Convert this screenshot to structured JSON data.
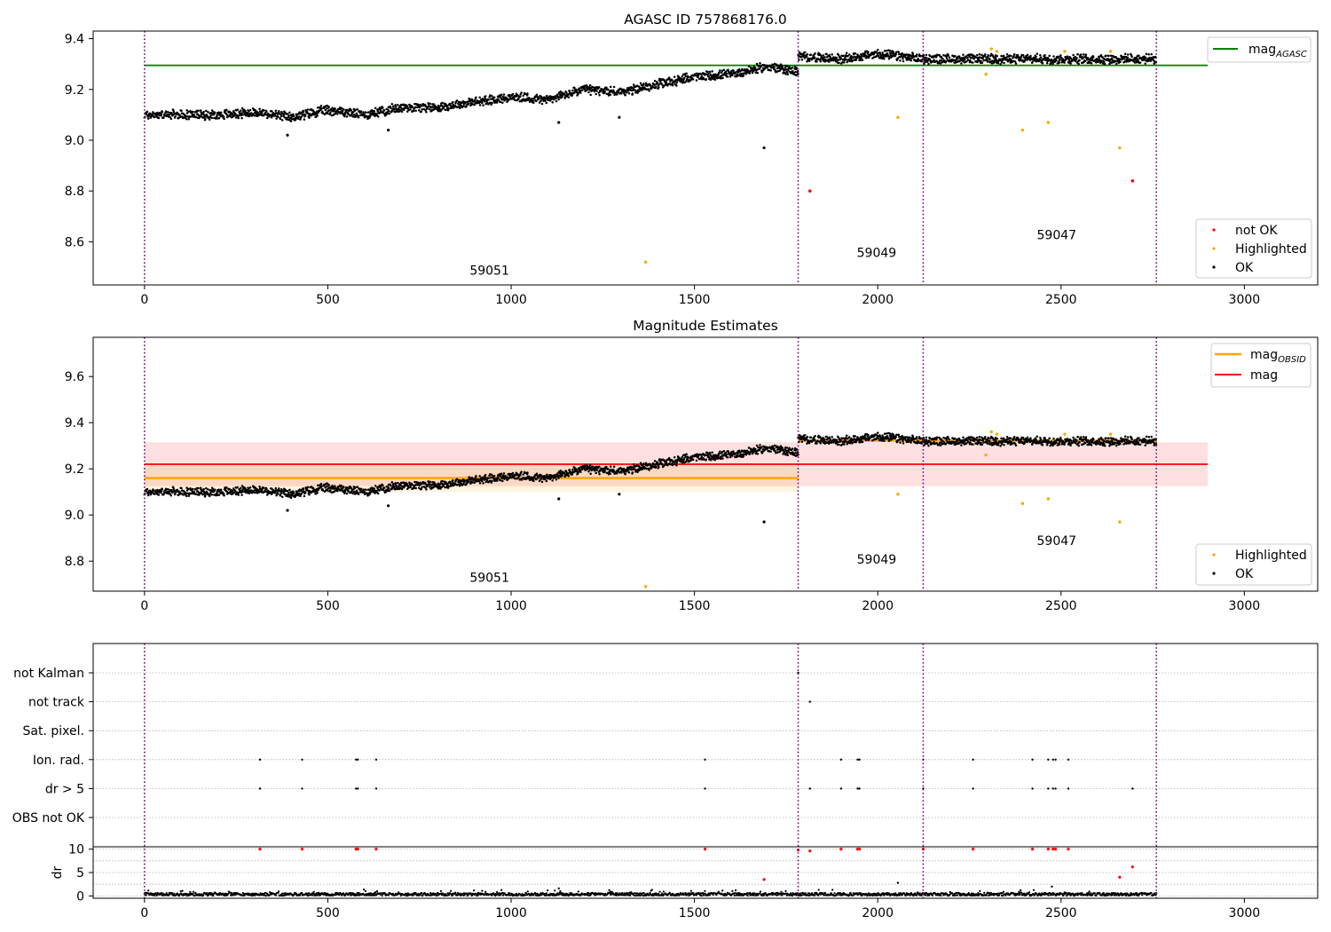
{
  "chart_data": [
    {
      "type": "scatter",
      "title": "AGASC ID 757868176.0",
      "xlim": [
        -140,
        3200
      ],
      "ylim": [
        8.43,
        9.43
      ],
      "xticks": [
        0,
        500,
        1000,
        1500,
        2000,
        2500,
        3000
      ],
      "yticks": [
        8.6,
        8.8,
        9.0,
        9.2,
        9.4
      ],
      "ytick_labels": [
        "8.6",
        "8.8",
        "9.0",
        "9.2",
        "9.4"
      ],
      "grid": false,
      "legend_position": "lower-right",
      "legend": [
        {
          "label": "not OK",
          "color": "#ff0000"
        },
        {
          "label": "Highlighted",
          "color": "#ffa500"
        },
        {
          "label": "OK",
          "color": "#000000"
        }
      ],
      "hline_legend": {
        "label": "mag",
        "subscript": "AGASC",
        "color": "#008000"
      },
      "hlines": [
        {
          "y": 9.295,
          "x0": 0,
          "x1": 2900,
          "color": "#008000"
        }
      ],
      "vlines": [
        0,
        1783,
        2124,
        2760
      ],
      "annotations": [
        {
          "text": "59051",
          "x": 887,
          "y": 8.47
        },
        {
          "text": "59049",
          "x": 1943,
          "y": 8.54
        },
        {
          "text": "59047",
          "x": 2434,
          "y": 8.61
        }
      ],
      "segments": [
        {
          "x0": 0,
          "x1": 1783,
          "trend": [
            [
              0,
              9.1
            ],
            [
              100,
              9.1
            ],
            [
              200,
              9.1
            ],
            [
              300,
              9.11
            ],
            [
              400,
              9.09
            ],
            [
              500,
              9.12
            ],
            [
              600,
              9.1
            ],
            [
              700,
              9.13
            ],
            [
              800,
              9.13
            ],
            [
              900,
              9.15
            ],
            [
              1000,
              9.17
            ],
            [
              1100,
              9.16
            ],
            [
              1200,
              9.2
            ],
            [
              1300,
              9.19
            ],
            [
              1400,
              9.22
            ],
            [
              1500,
              9.25
            ],
            [
              1600,
              9.26
            ],
            [
              1700,
              9.29
            ],
            [
              1783,
              9.27
            ]
          ]
        },
        {
          "x0": 1783,
          "x1": 2124,
          "trend": [
            [
              1783,
              9.33
            ],
            [
              1900,
              9.32
            ],
            [
              2000,
              9.34
            ],
            [
              2124,
              9.32
            ]
          ]
        },
        {
          "x0": 2124,
          "x1": 2760,
          "trend": [
            [
              2124,
              9.32
            ],
            [
              2300,
              9.32
            ],
            [
              2500,
              9.32
            ],
            [
              2760,
              9.32
            ]
          ]
        }
      ],
      "ok_outliers": [
        [
          390,
          9.02
        ],
        [
          665,
          9.04
        ],
        [
          1130,
          9.07
        ],
        [
          1295,
          9.09
        ],
        [
          1690,
          8.97
        ]
      ],
      "highlighted": [
        [
          1367,
          8.52
        ],
        [
          2055,
          9.09
        ],
        [
          2295,
          9.26
        ],
        [
          2395,
          9.04
        ],
        [
          2465,
          9.07
        ],
        [
          2660,
          8.97
        ],
        [
          2310,
          9.36
        ],
        [
          2325,
          9.35
        ],
        [
          2510,
          9.35
        ],
        [
          2635,
          9.35
        ]
      ],
      "not_ok": [
        [
          1815,
          8.8
        ],
        [
          2695,
          8.84
        ]
      ]
    },
    {
      "type": "scatter",
      "title": "Magnitude Estimates",
      "xlim": [
        -140,
        3200
      ],
      "ylim": [
        8.67,
        9.77
      ],
      "xticks": [
        0,
        500,
        1000,
        1500,
        2000,
        2500,
        3000
      ],
      "yticks": [
        8.8,
        9.0,
        9.2,
        9.4,
        9.6
      ],
      "ytick_labels": [
        "8.8",
        "9.0",
        "9.2",
        "9.4",
        "9.6"
      ],
      "grid": false,
      "legend_position": "lower-right",
      "legend": [
        {
          "label": "Highlighted",
          "color": "#ffa500"
        },
        {
          "label": "OK",
          "color": "#000000"
        }
      ],
      "line_legend": [
        {
          "label": "mag",
          "subscript": "OBSID",
          "color": "#ffa500"
        },
        {
          "label": "mag",
          "subscript": "",
          "color": "#ff0000"
        }
      ],
      "bands": [
        {
          "x0": 0,
          "x1": 2900,
          "y0": 9.125,
          "y1": 9.315,
          "color": "#ff0000",
          "opacity": 0.12
        },
        {
          "x0": 0,
          "x1": 1783,
          "y0": 9.1,
          "y1": 9.22,
          "color": "#ffa500",
          "opacity": 0.12
        }
      ],
      "hlines": [
        {
          "y": 9.22,
          "x0": 0,
          "x1": 2900,
          "color": "#ff0000"
        },
        {
          "y": 9.16,
          "x0": 0,
          "x1": 1783,
          "color": "#ffa500"
        },
        {
          "y": 9.322,
          "x0": 1783,
          "x1": 2760,
          "color": "#ffa500"
        }
      ],
      "vlines": [
        0,
        1783,
        2124,
        2760
      ],
      "annotations": [
        {
          "text": "59051",
          "x": 887,
          "y": 8.71
        },
        {
          "text": "59049",
          "x": 1943,
          "y": 8.79
        },
        {
          "text": "59047",
          "x": 2434,
          "y": 8.87
        }
      ],
      "segments": [
        {
          "x0": 0,
          "x1": 1783,
          "trend": [
            [
              0,
              9.1
            ],
            [
              100,
              9.1
            ],
            [
              200,
              9.1
            ],
            [
              300,
              9.11
            ],
            [
              400,
              9.09
            ],
            [
              500,
              9.12
            ],
            [
              600,
              9.1
            ],
            [
              700,
              9.13
            ],
            [
              800,
              9.13
            ],
            [
              900,
              9.15
            ],
            [
              1000,
              9.17
            ],
            [
              1100,
              9.16
            ],
            [
              1200,
              9.2
            ],
            [
              1300,
              9.19
            ],
            [
              1400,
              9.22
            ],
            [
              1500,
              9.25
            ],
            [
              1600,
              9.26
            ],
            [
              1700,
              9.29
            ],
            [
              1783,
              9.27
            ]
          ]
        },
        {
          "x0": 1783,
          "x1": 2124,
          "trend": [
            [
              1783,
              9.33
            ],
            [
              1900,
              9.32
            ],
            [
              2000,
              9.34
            ],
            [
              2124,
              9.32
            ]
          ]
        },
        {
          "x0": 2124,
          "x1": 2760,
          "trend": [
            [
              2124,
              9.32
            ],
            [
              2300,
              9.32
            ],
            [
              2500,
              9.32
            ],
            [
              2760,
              9.32
            ]
          ]
        }
      ],
      "ok_outliers": [
        [
          390,
          9.02
        ],
        [
          665,
          9.04
        ],
        [
          1130,
          9.07
        ],
        [
          1295,
          9.09
        ],
        [
          1690,
          8.97
        ]
      ],
      "highlighted": [
        [
          1367,
          8.69
        ],
        [
          2055,
          9.09
        ],
        [
          2295,
          9.26
        ],
        [
          2395,
          9.05
        ],
        [
          2465,
          9.07
        ],
        [
          2660,
          8.97
        ],
        [
          2310,
          9.36
        ],
        [
          2325,
          9.35
        ],
        [
          2510,
          9.35
        ],
        [
          2635,
          9.35
        ]
      ]
    },
    {
      "type": "scatter",
      "title": "",
      "xlim": [
        -140,
        3200
      ],
      "xticks": [
        0,
        500,
        1000,
        1500,
        2000,
        2500,
        3000
      ],
      "flag_rows": [
        "not Kalman",
        "not track",
        "Sat. pixel.",
        "Ion. rad.",
        "dr > 5",
        "OBS not OK"
      ],
      "vlines": [
        0,
        1783,
        2124,
        2760
      ],
      "flags": {
        "not Kalman": [
          1783
        ],
        "not track": [
          1815
        ],
        "Sat. pixel.": [],
        "Ion. rad.": [
          315,
          430,
          577,
          582,
          632,
          1529,
          1900,
          1945,
          1950,
          2124,
          2260,
          2422,
          2465,
          2478,
          2485,
          2520
        ],
        "dr > 5": [
          315,
          430,
          577,
          582,
          632,
          1529,
          1815,
          1900,
          1945,
          1950,
          2124,
          2260,
          2422,
          2465,
          2478,
          2485,
          2520,
          2695
        ],
        "OBS not OK": []
      },
      "dr_ylabel": "dr",
      "dr_ylim": [
        -0.5,
        10.5
      ],
      "dr_yticks": [
        0,
        5,
        10
      ],
      "dr_ytick_labels": [
        "0",
        "5",
        "10"
      ],
      "dr_red": [
        [
          315,
          10
        ],
        [
          430,
          10
        ],
        [
          577,
          10
        ],
        [
          582,
          10
        ],
        [
          632,
          10
        ],
        [
          1529,
          10
        ],
        [
          1690,
          3.5
        ],
        [
          1783,
          9.8
        ],
        [
          1815,
          9.6
        ],
        [
          1900,
          10
        ],
        [
          1945,
          10
        ],
        [
          1950,
          10
        ],
        [
          2124,
          10
        ],
        [
          2260,
          10
        ],
        [
          2422,
          10
        ],
        [
          2465,
          10
        ],
        [
          2478,
          10
        ],
        [
          2485,
          10
        ],
        [
          2520,
          10
        ],
        [
          2660,
          4
        ],
        [
          2695,
          6.2
        ]
      ]
    }
  ]
}
